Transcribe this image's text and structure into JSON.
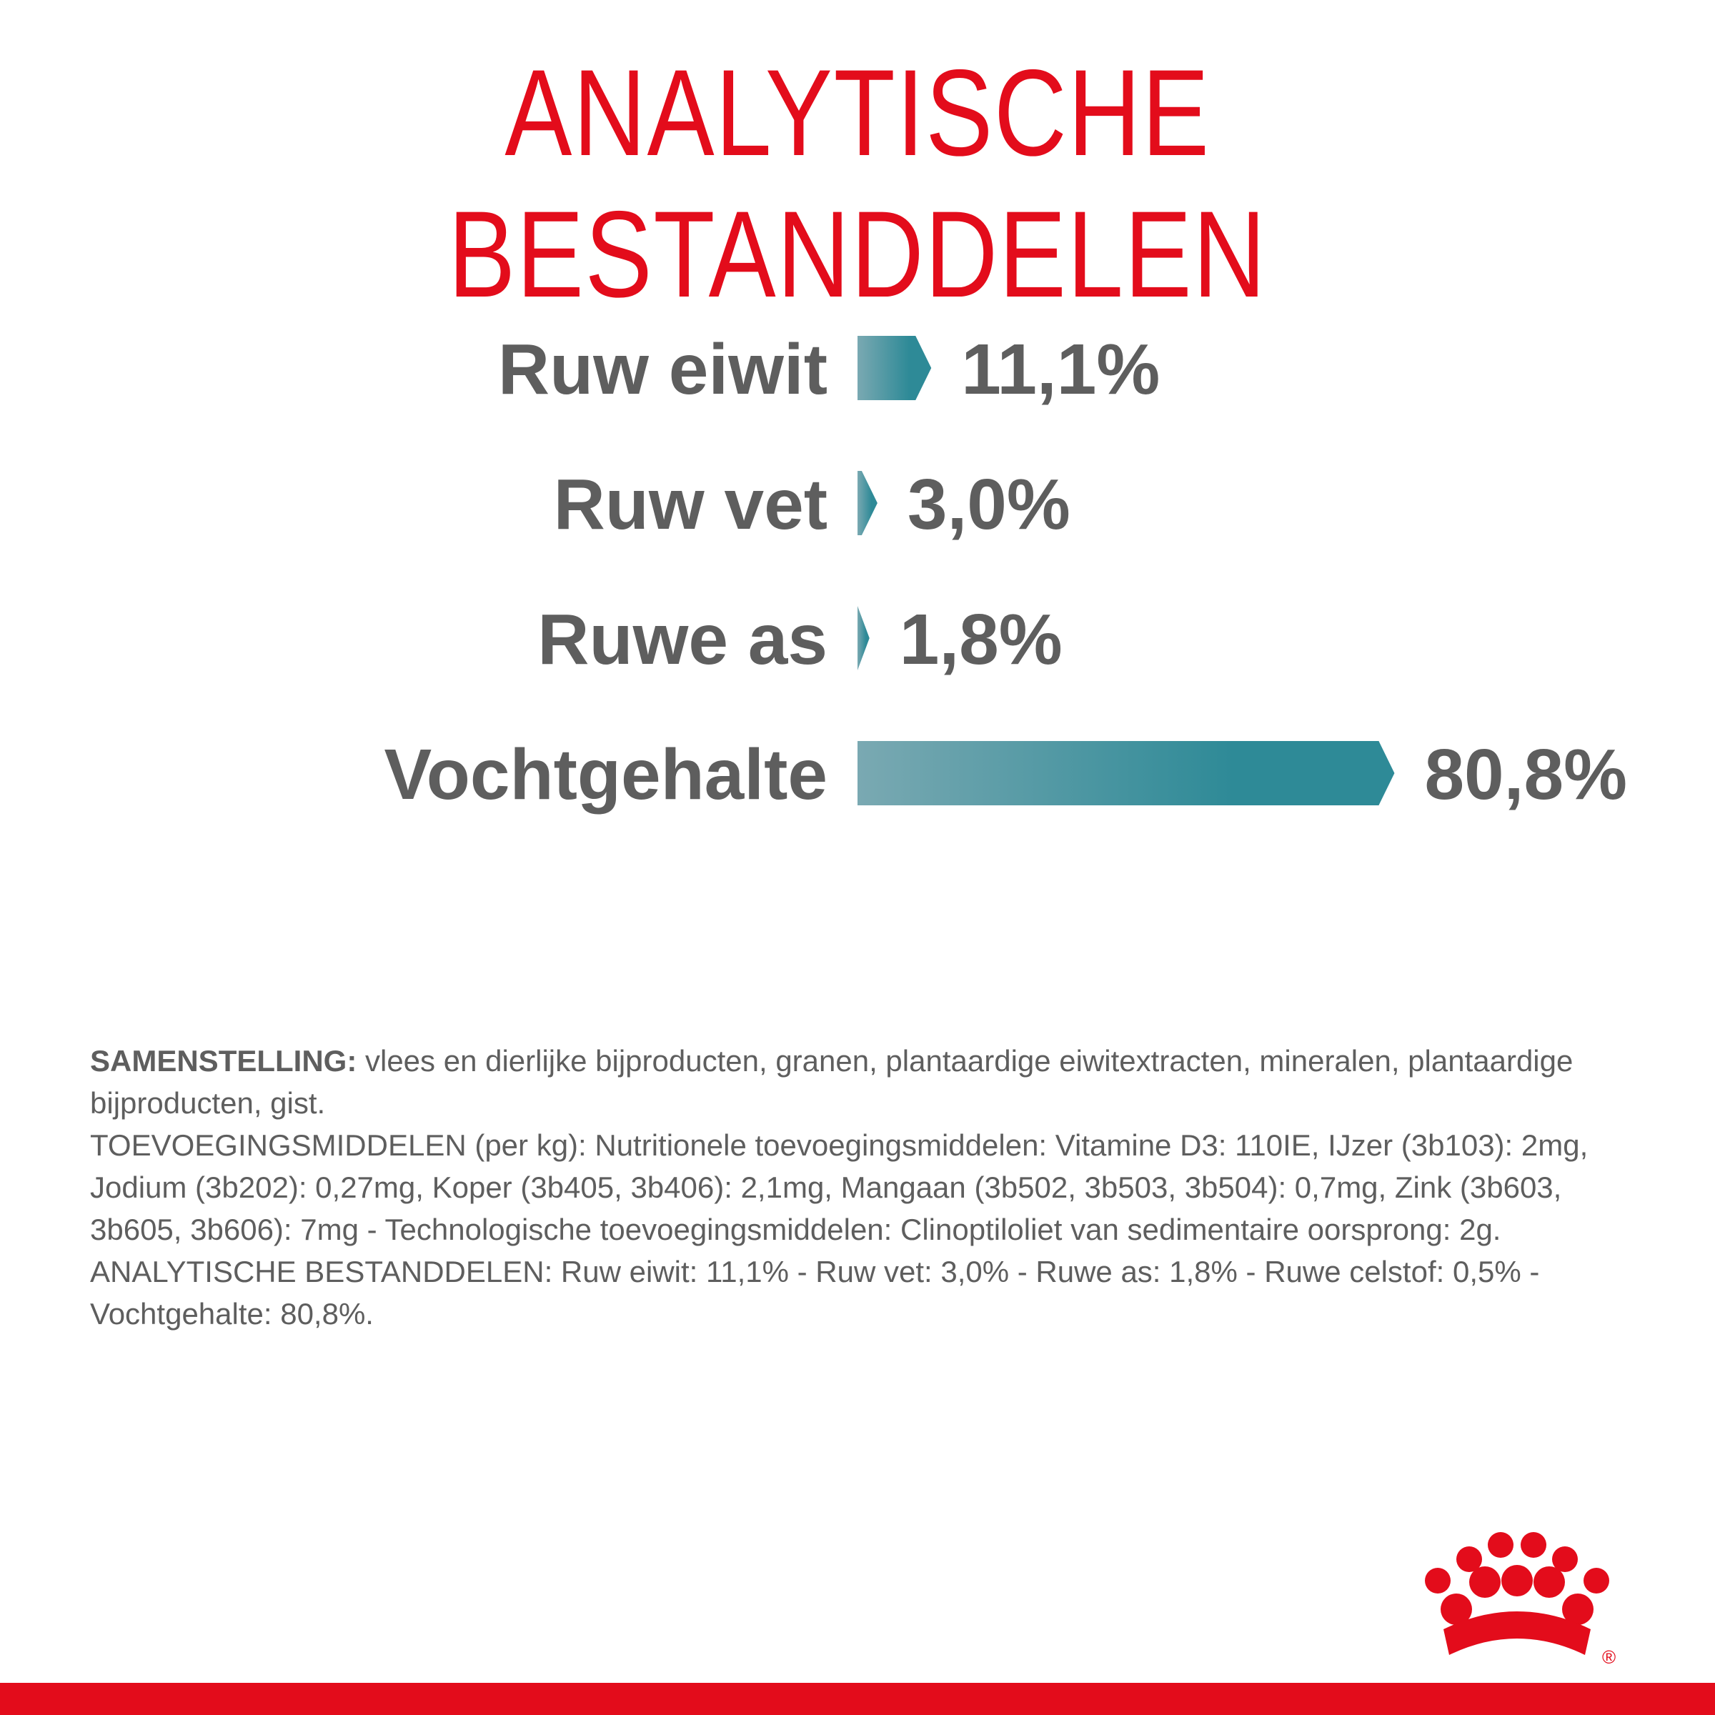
{
  "title": "ANALYTISCHE BESTANDDELEN",
  "colors": {
    "brand_red": "#e30c1b",
    "text_gray": "#5e5e5e",
    "bar_light": "#7aa9b2",
    "bar_dark": "#2e8a97"
  },
  "chart_data": {
    "type": "bar",
    "orientation": "horizontal",
    "categories": [
      "Ruw eiwit",
      "Ruw vet",
      "Ruwe as",
      "Vochtgehalte"
    ],
    "values": [
      11.1,
      3.0,
      1.8,
      80.8
    ],
    "value_labels": [
      "11,1%",
      "3,0%",
      "1,8%",
      "80,8%"
    ],
    "unit": "%",
    "grid": false,
    "legend": "none"
  },
  "composition": {
    "heading": "SAMENSTELLING:",
    "ingredients": " vlees en dierlijke bijproducten, granen, plantaardige eiwitextracten, mineralen, plantaardige bijproducten, gist.",
    "additives": "TOEVOEGINGSMIDDELEN (per kg): Nutritionele toevoegingsmiddelen: Vitamine D3: 110IE, IJzer (3b103): 2mg, Jodium (3b202): 0,27mg, Koper (3b405, 3b406): 2,1mg, Mangaan (3b502, 3b503, 3b504): 0,7mg, Zink (3b603, 3b605, 3b606): 7mg - Technologische toevoegingsmiddelen: Clinoptiloliet van sedimentaire oorsprong: 2g.",
    "analysis": "ANALYTISCHE BESTANDDELEN: Ruw eiwit: 11,1% - Ruw vet: 3,0% - Ruwe as: 1,8% - Ruwe celstof: 0,5% - Vochtgehalte: 80,8%."
  },
  "logo": {
    "icon": "crown-logo-icon",
    "registered_mark": "®"
  }
}
